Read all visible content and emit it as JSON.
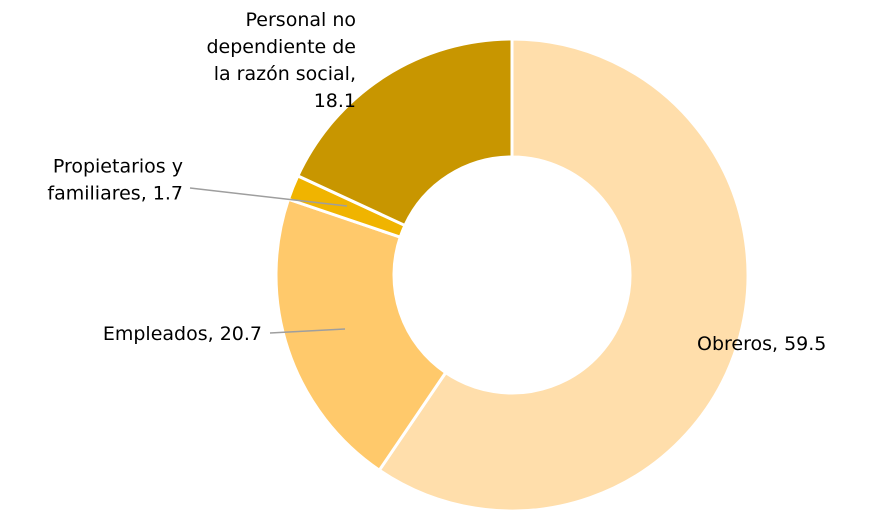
{
  "chart_data": {
    "type": "pie",
    "donut": true,
    "title_fragment": "",
    "categories": [
      "Obreros",
      "Empleados",
      "Propietarios y familiares",
      "Personal no dependiente de la razón social"
    ],
    "values": [
      59.5,
      20.7,
      1.7,
      18.1
    ],
    "labels": [
      [
        "Obreros, 59.5"
      ],
      [
        "Empleados, 20.7"
      ],
      [
        "Propietarios y",
        "familiares, 1.7"
      ],
      [
        "Personal no",
        "dependiente de",
        "la razón social,",
        "18.1"
      ]
    ],
    "colors": [
      "#FFDEAB",
      "#FFC96B",
      "#F0B400",
      "#C89600"
    ],
    "start": "12 o'clock",
    "direction": "clockwise",
    "legend": "none (data labels)"
  }
}
